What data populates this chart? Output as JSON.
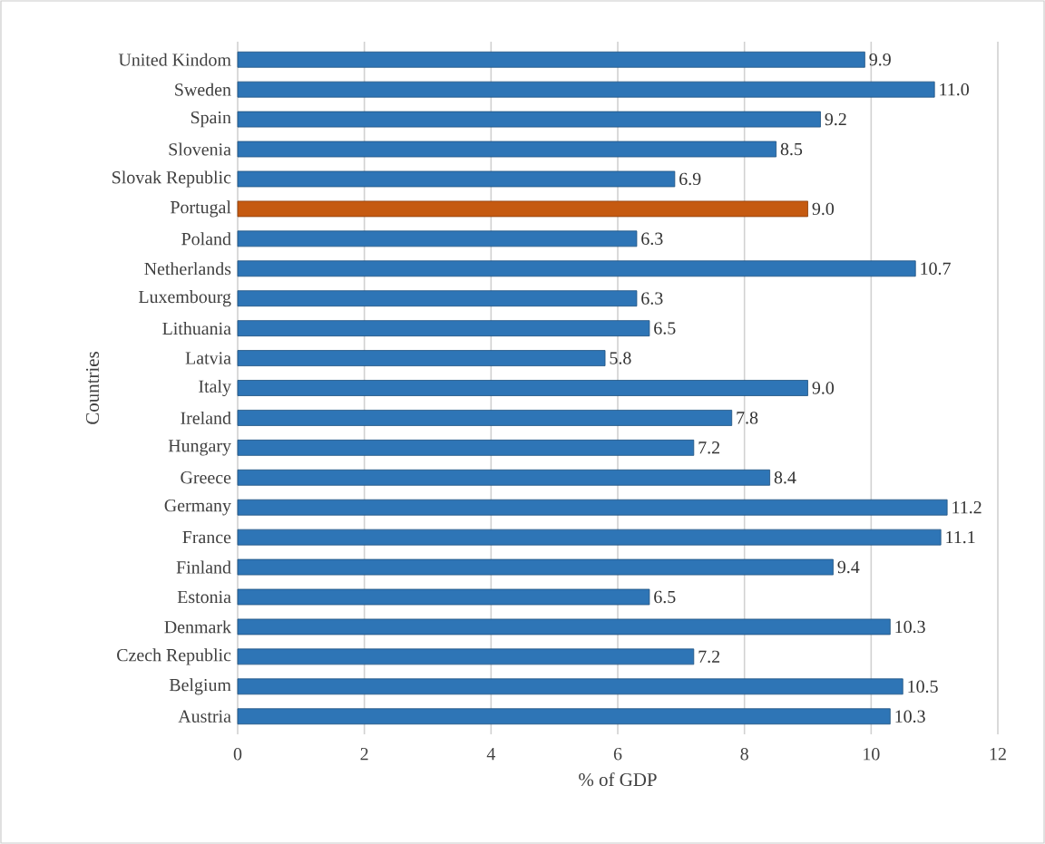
{
  "chart_data": {
    "type": "bar",
    "orientation": "horizontal",
    "xlabel": "% of GDP",
    "ylabel": "Countries",
    "categories": [
      "United Kindom",
      "Sweden",
      "Spain",
      "Slovenia",
      "Slovak Republic",
      "Portugal",
      "Poland",
      "Netherlands",
      "Luxembourg",
      "Lithuania",
      "Latvia",
      "Italy",
      "Ireland",
      "Hungary",
      "Greece",
      "Germany",
      "France",
      "Finland",
      "Estonia",
      "Denmark",
      "Czech Republic",
      "Belgium",
      "Austria"
    ],
    "values": [
      9.9,
      11.0,
      9.2,
      8.5,
      6.9,
      9.0,
      6.3,
      10.7,
      6.3,
      6.5,
      5.8,
      9.0,
      7.8,
      7.2,
      8.4,
      11.2,
      11.1,
      9.4,
      6.5,
      10.3,
      7.2,
      10.5,
      10.3
    ],
    "value_labels": [
      "9.9",
      "11.0",
      "9.2",
      "8.5",
      "6.9",
      "9.0",
      "6.3",
      "10.7",
      "6.3",
      "6.5",
      "5.8",
      "9.0",
      "7.8",
      "7.2",
      "8.4",
      "11.2",
      "11.1",
      "9.4",
      "6.5",
      "10.3",
      "7.2",
      "10.5",
      "10.3"
    ],
    "colors": [
      "#2e75b6",
      "#2e75b6",
      "#2e75b6",
      "#2e75b6",
      "#2e75b6",
      "#c55a11",
      "#2e75b6",
      "#2e75b6",
      "#2e75b6",
      "#2e75b6",
      "#2e75b6",
      "#2e75b6",
      "#2e75b6",
      "#2e75b6",
      "#2e75b6",
      "#2e75b6",
      "#2e75b6",
      "#2e75b6",
      "#2e75b6",
      "#2e75b6",
      "#2e75b6",
      "#2e75b6",
      "#2e75b6"
    ],
    "xlim": [
      0,
      12
    ],
    "xticks": [
      0,
      2,
      4,
      6,
      8,
      10,
      12
    ],
    "grid": "x"
  }
}
